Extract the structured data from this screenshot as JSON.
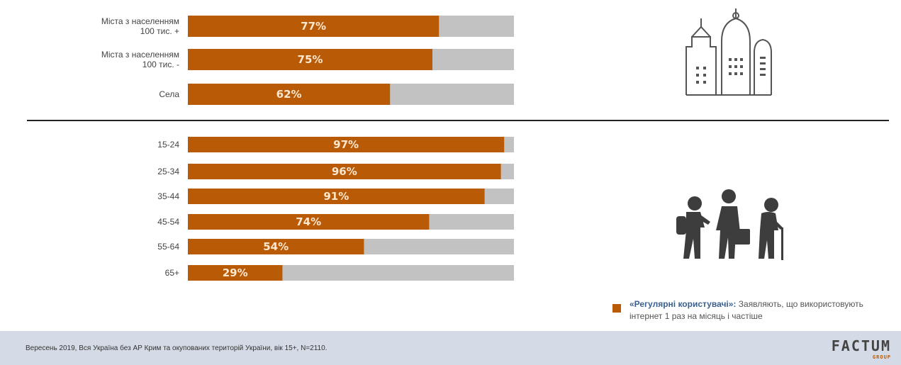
{
  "chart_data": [
    {
      "type": "bar",
      "orientation": "horizontal",
      "categories": [
        [
          "Міста з населенням",
          "100 тис. +"
        ],
        [
          "Міста з населенням",
          "100 тис. -"
        ],
        [
          "Села"
        ]
      ],
      "values": [
        77,
        75,
        62
      ],
      "value_labels": [
        "77%",
        "75%",
        "62%"
      ],
      "xlim": [
        0,
        100
      ],
      "bar_color": "#b85a06",
      "track_color": "#c2c2c2"
    },
    {
      "type": "bar",
      "orientation": "horizontal",
      "categories": [
        [
          "15-24"
        ],
        [
          "25-34"
        ],
        [
          "35-44"
        ],
        [
          "45-54"
        ],
        [
          "55-64"
        ],
        [
          "65+"
        ]
      ],
      "values": [
        97,
        96,
        91,
        74,
        54,
        29
      ],
      "value_labels": [
        "97%",
        "96%",
        "91%",
        "74%",
        "54%",
        "29%"
      ],
      "xlim": [
        0,
        100
      ],
      "bar_color": "#b85a06",
      "track_color": "#c2c2c2"
    }
  ],
  "icons": {
    "top": "city-buildings-icon",
    "bottom": "people-age-groups-icon"
  },
  "legend": {
    "title": "«Регулярні користувачі»:",
    "text": "Заявляють, що використовують інтернет 1 раз на місяць і частіше",
    "color": "#b85a06"
  },
  "footer": {
    "note": "Вересень 2019, Вся Україна без АР Крим та окупованих територій України, вік 15+, N=2110.",
    "logo": "FACTUM",
    "logo_sub": "GROUP"
  }
}
